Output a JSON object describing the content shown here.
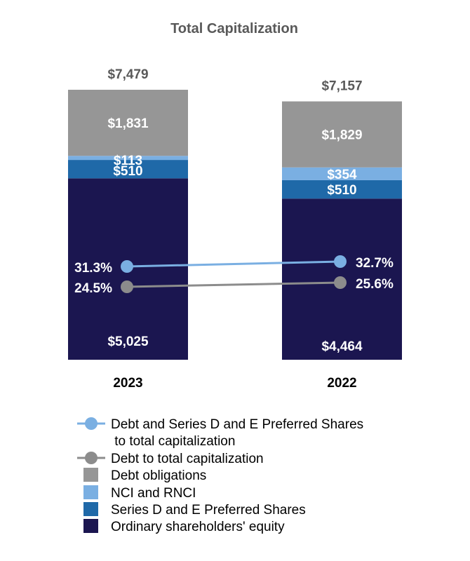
{
  "chart_data": {
    "type": "bar",
    "stacked": true,
    "title": "Total Capitalization",
    "categories": [
      "2023",
      "2022"
    ],
    "totals": [
      "$7,479",
      "$7,157"
    ],
    "series": [
      {
        "name": "Ordinary shareholders' equity",
        "values": [
          5025,
          4464
        ],
        "labels": [
          "$5,025",
          "$4,464"
        ],
        "color": "#1b1650"
      },
      {
        "name": "Series D and E Preferred Shares",
        "values": [
          510,
          510
        ],
        "labels": [
          "$510",
          "$510"
        ],
        "color": "#1f69a8"
      },
      {
        "name": "NCI and RNCI",
        "values": [
          113,
          354
        ],
        "labels": [
          "$113",
          "$354"
        ],
        "color": "#7aafe2"
      },
      {
        "name": "Debt obligations",
        "values": [
          1831,
          1829
        ],
        "labels": [
          "$1,831",
          "$1,829"
        ],
        "color": "#969696"
      }
    ],
    "lines": [
      {
        "name": "Debt and Series D and E Preferred Shares to total capitalization",
        "values": [
          31.3,
          32.7
        ],
        "labels": [
          "31.3%",
          "32.7%"
        ],
        "color": "#7aafe2"
      },
      {
        "name": "Debt to total capitalization",
        "values": [
          24.5,
          25.6
        ],
        "labels": [
          "24.5%",
          "25.6%"
        ],
        "color": "#8c8c8c"
      }
    ]
  },
  "legend": [
    {
      "kind": "line",
      "lines": [
        "Debt and Series D and E Preferred Shares",
        " to total capitalization"
      ],
      "color": "#7aafe2"
    },
    {
      "kind": "line",
      "lines": [
        "Debt to total capitalization"
      ],
      "color": "#8c8c8c"
    },
    {
      "kind": "box",
      "lines": [
        "Debt obligations"
      ],
      "color": "#969696"
    },
    {
      "kind": "box",
      "lines": [
        "NCI and RNCI"
      ],
      "color": "#7aafe2"
    },
    {
      "kind": "box",
      "lines": [
        "Series D and E Preferred Shares"
      ],
      "color": "#1f69a8"
    },
    {
      "kind": "box",
      "lines": [
        "Ordinary shareholders' equity"
      ],
      "color": "#1b1650"
    }
  ]
}
